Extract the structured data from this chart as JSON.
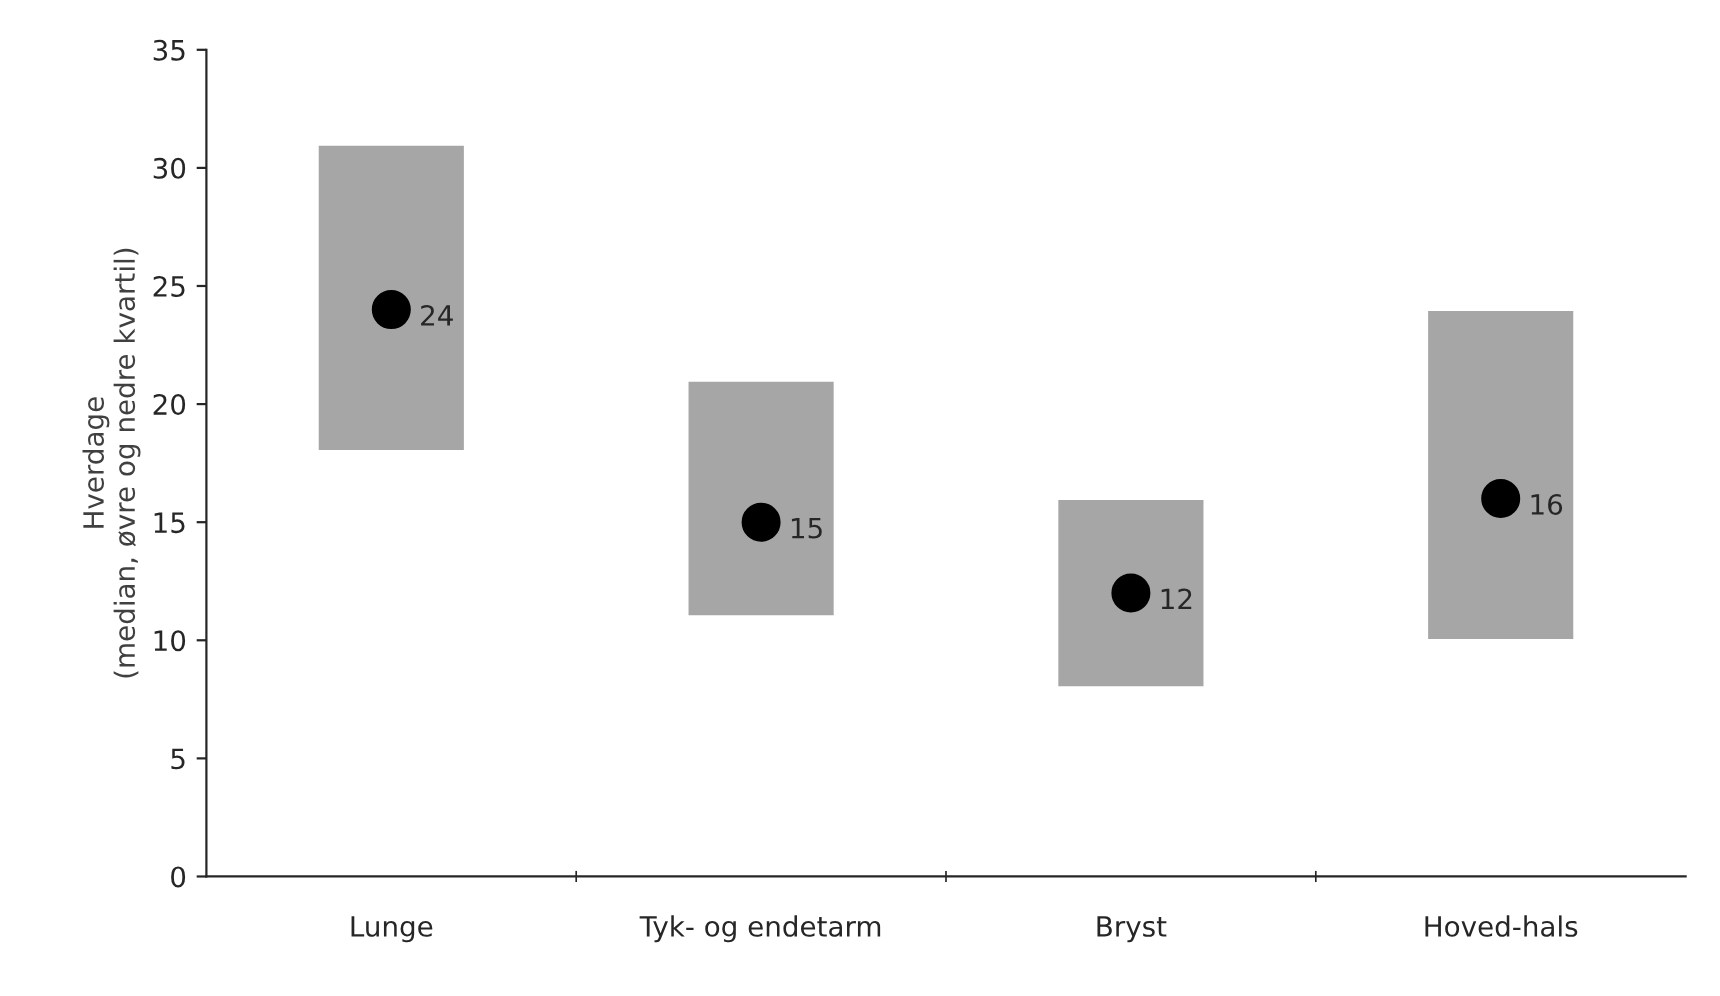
{
  "chart_data": {
    "type": "bar",
    "ylabel": "Hverdage\n(median, øvre og nedre kvartil)",
    "categories": [
      "Lunge",
      "Tyk- og endetarm",
      "Bryst",
      "Hoved-hals"
    ],
    "series": [
      {
        "color": "#a6a6a6",
        "base": [
          18,
          11,
          8,
          10
        ],
        "values": [
          13,
          10,
          8,
          14
        ]
      },
      {
        "type": "scatter",
        "color": "#000000",
        "marker": "circle",
        "values": [
          24,
          15,
          12,
          16
        ],
        "value_labels": [
          "24",
          "15",
          "12",
          "16"
        ]
      }
    ],
    "ylim": [
      0,
      35
    ],
    "yticks": [
      0,
      5,
      10,
      15,
      20,
      25,
      30,
      35
    ],
    "grid": false,
    "legend": false
  }
}
